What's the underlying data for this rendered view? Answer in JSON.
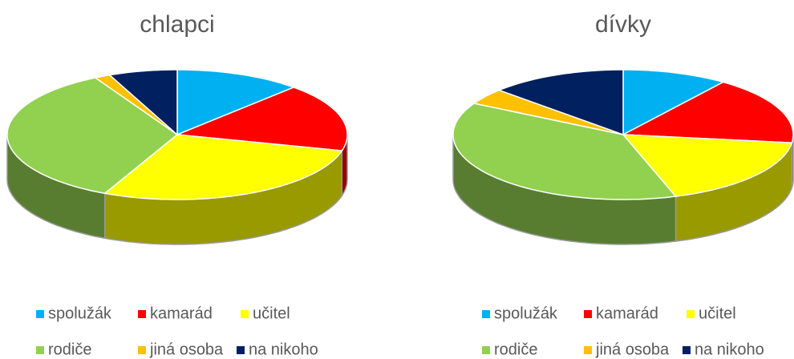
{
  "chart_data": [
    {
      "type": "pie",
      "title": "chlapci",
      "categories": [
        "spolužák",
        "kamarád",
        "učitel",
        "rodiče",
        "jiná osoba",
        "na nikoho"
      ],
      "values": [
        12,
        17,
        28,
        35,
        1.5,
        6.5
      ],
      "colors": [
        "#00b0f0",
        "#ff0000",
        "#ffff00",
        "#92d050",
        "#ffc000",
        "#002060"
      ]
    },
    {
      "type": "pie",
      "title": "dívky",
      "categories": [
        "spolužák",
        "kamarád",
        "učitel",
        "rodiče",
        "jiná osoba",
        "na nikoho"
      ],
      "values": [
        10,
        17,
        18,
        38,
        4,
        13
      ],
      "colors": [
        "#00b0f0",
        "#ff0000",
        "#ffff00",
        "#92d050",
        "#ffc000",
        "#002060"
      ]
    }
  ]
}
